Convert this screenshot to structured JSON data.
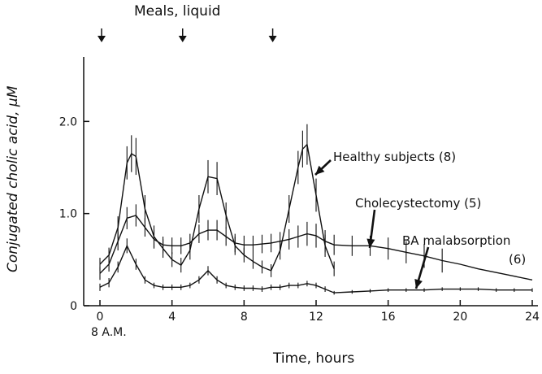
{
  "chart_data": {
    "type": "line",
    "title": "",
    "xlabel": "Time, hours",
    "ylabel": "Conjugated cholic acid, μM",
    "xlim": [
      0,
      24
    ],
    "ylim": [
      0,
      2.7
    ],
    "x_ticks": [
      0,
      4,
      8,
      12,
      16,
      20,
      24
    ],
    "y_ticks": [
      0,
      1.0,
      2.0
    ],
    "y_tick_labels": [
      "0",
      "1.0",
      "2.0"
    ],
    "x_start_label": "8 A.M.",
    "meals": {
      "label": "Meals, liquid",
      "times": [
        0,
        4.5,
        9.5
      ]
    },
    "series": [
      {
        "name": "Healthy subjects (8)",
        "x": [
          0,
          0.5,
          1,
          1.5,
          1.75,
          2,
          2.5,
          3,
          3.5,
          4,
          4.5,
          5,
          5.5,
          6,
          6.5,
          7,
          7.5,
          8,
          8.5,
          9,
          9.5,
          10,
          10.5,
          11,
          11.25,
          11.5,
          12,
          12.5,
          13
        ],
        "y": [
          0.45,
          0.55,
          0.85,
          1.55,
          1.65,
          1.62,
          1.05,
          0.75,
          0.62,
          0.5,
          0.44,
          0.6,
          1.05,
          1.4,
          1.38,
          0.98,
          0.65,
          0.55,
          0.48,
          0.42,
          0.38,
          0.6,
          1.05,
          1.5,
          1.7,
          1.75,
          1.2,
          0.65,
          0.4
        ],
        "err": [
          0.07,
          0.08,
          0.12,
          0.18,
          0.2,
          0.2,
          0.15,
          0.12,
          0.1,
          0.08,
          0.08,
          0.1,
          0.15,
          0.18,
          0.18,
          0.14,
          0.1,
          0.08,
          0.08,
          0.07,
          0.07,
          0.1,
          0.15,
          0.18,
          0.2,
          0.22,
          0.18,
          0.12,
          0.08
        ]
      },
      {
        "name": "Cholecystectomy (5)",
        "x": [
          0,
          0.5,
          1,
          1.5,
          2,
          2.5,
          3,
          3.5,
          4,
          4.5,
          5,
          5.5,
          6,
          6.5,
          7,
          7.5,
          8,
          8.5,
          9,
          9.5,
          10,
          10.5,
          11,
          11.5,
          12,
          12.5,
          13,
          14,
          15,
          16,
          17,
          18,
          19,
          20,
          21,
          22,
          23,
          24
        ],
        "y": [
          0.35,
          0.45,
          0.7,
          0.95,
          0.98,
          0.85,
          0.72,
          0.66,
          0.65,
          0.65,
          0.68,
          0.78,
          0.82,
          0.82,
          0.75,
          0.68,
          0.66,
          0.66,
          0.67,
          0.68,
          0.7,
          0.72,
          0.75,
          0.78,
          0.76,
          0.7,
          0.66,
          0.65,
          0.65,
          0.62,
          0.58,
          0.54,
          0.49,
          0.45,
          0.4,
          0.36,
          0.32,
          0.28
        ],
        "err": [
          0.07,
          0.08,
          0.1,
          0.12,
          0.12,
          0.1,
          0.1,
          0.09,
          0.09,
          0.09,
          0.1,
          0.1,
          0.11,
          0.11,
          0.1,
          0.1,
          0.1,
          0.1,
          0.1,
          0.1,
          0.1,
          0.11,
          0.12,
          0.13,
          0.13,
          0.12,
          0.11,
          0.11,
          0.11,
          0.12,
          0.12,
          0.13,
          0.13,
          0.0,
          0.0,
          0.0,
          0.0,
          0.0
        ]
      },
      {
        "name": "BA malabsorption (6)",
        "x": [
          0,
          0.5,
          1,
          1.5,
          2,
          2.5,
          3,
          3.5,
          4,
          4.5,
          5,
          5.5,
          6,
          6.5,
          7,
          7.5,
          8,
          8.5,
          9,
          9.5,
          10,
          10.5,
          11,
          11.5,
          12,
          12.5,
          13,
          14,
          15,
          16,
          17,
          18,
          19,
          20,
          21,
          22,
          23,
          24
        ],
        "y": [
          0.2,
          0.25,
          0.42,
          0.65,
          0.45,
          0.28,
          0.22,
          0.2,
          0.2,
          0.2,
          0.22,
          0.28,
          0.38,
          0.28,
          0.22,
          0.2,
          0.19,
          0.19,
          0.18,
          0.2,
          0.2,
          0.22,
          0.22,
          0.24,
          0.22,
          0.18,
          0.14,
          0.15,
          0.16,
          0.17,
          0.17,
          0.17,
          0.18,
          0.18,
          0.18,
          0.17,
          0.17,
          0.17
        ],
        "err": [
          0.04,
          0.05,
          0.06,
          0.08,
          0.06,
          0.04,
          0.03,
          0.03,
          0.03,
          0.03,
          0.03,
          0.04,
          0.05,
          0.04,
          0.03,
          0.03,
          0.03,
          0.03,
          0.03,
          0.03,
          0.03,
          0.03,
          0.03,
          0.03,
          0.03,
          0.03,
          0.02,
          0.02,
          0.02,
          0.02,
          0.02,
          0.02,
          0.02,
          0.02,
          0.02,
          0.02,
          0.02,
          0.02
        ]
      }
    ],
    "annotations": [
      {
        "text": "Healthy subjects (8)",
        "series": 0,
        "points_to_x": 12.2
      },
      {
        "text": "Cholecystectomy (5)",
        "series": 1,
        "points_to_x": 15
      },
      {
        "text": "BA malabsorption",
        "series": 2,
        "points_to_x": 17.5,
        "suffix": "(6)"
      }
    ],
    "grid": false,
    "legend": "none"
  }
}
